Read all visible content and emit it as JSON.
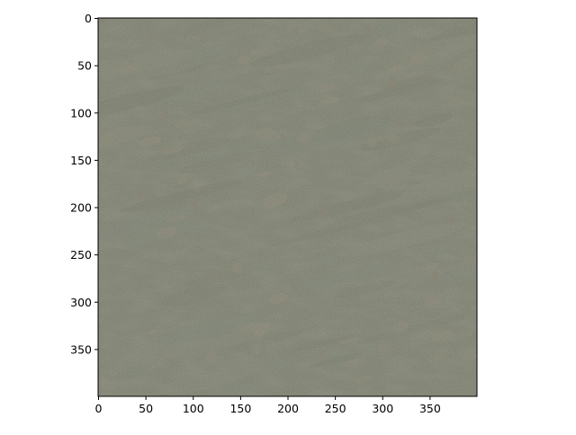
{
  "figure": {
    "background": "#ffffff",
    "axes_edge_color": "#000000"
  },
  "image": {
    "description_colors": {
      "base": "#6b705f",
      "grass_dark": "#4f5a48",
      "grass_light": "#8a8a78",
      "teal": "#5f7a72",
      "soil": "#a78c7a",
      "rust": "#8a5a4a"
    }
  },
  "axes": {
    "x": {
      "range": [
        0,
        400
      ],
      "ticks": [
        0,
        50,
        100,
        150,
        200,
        250,
        300,
        350
      ],
      "tick_labels": [
        "0",
        "50",
        "100",
        "150",
        "200",
        "250",
        "300",
        "350"
      ]
    },
    "y": {
      "range": [
        0,
        400
      ],
      "inverted": true,
      "ticks": [
        0,
        50,
        100,
        150,
        200,
        250,
        300,
        350
      ],
      "tick_labels": [
        "0",
        "50",
        "100",
        "150",
        "200",
        "250",
        "300",
        "350"
      ]
    }
  }
}
